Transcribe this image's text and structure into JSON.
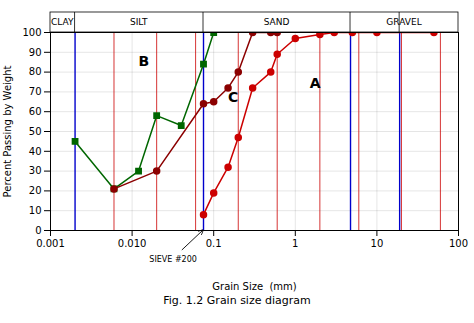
{
  "chart_data": {
    "type": "line",
    "title": "Fig. 1.2  Grain size diagram",
    "x_label": "Grain Size  (mm)",
    "y_label": "Percent Passing by Weight",
    "log": "x",
    "grid": true,
    "xlim": [
      0.001,
      100
    ],
    "ylim": [
      0,
      100
    ],
    "xticks": [
      0.001,
      {
        "value": 0.01,
        "label": "0.010"
      },
      0.1,
      1,
      10,
      100
    ],
    "yticks": [
      0,
      10,
      20,
      30,
      40,
      50,
      60,
      70,
      80,
      90,
      100
    ],
    "series": [
      {
        "name": "A",
        "color": "#cc0000",
        "marker": "circle",
        "x": [
          0.075,
          0.1,
          0.15,
          0.2,
          0.3,
          0.5,
          0.6,
          1.0,
          2.0,
          3.0,
          5.0,
          10.0,
          50.0
        ],
        "values": [
          8,
          19,
          32,
          47,
          72,
          80,
          89,
          97,
          99,
          100,
          100,
          100,
          100
        ]
      },
      {
        "name": "B",
        "color": "#006600",
        "marker": "square",
        "x": [
          0.002,
          0.006,
          0.012,
          0.02,
          0.04,
          0.075,
          0.1
        ],
        "values": [
          45,
          21,
          30,
          58,
          53,
          84,
          100
        ]
      },
      {
        "name": "C",
        "color": "#8B0000",
        "marker": "circle",
        "x": [
          0.006,
          0.02,
          0.075,
          0.1,
          0.15,
          0.2,
          0.3,
          0.5,
          0.6
        ],
        "values": [
          21,
          30,
          64,
          65,
          72,
          80,
          100,
          100,
          100
        ]
      }
    ],
    "annotations": [
      {
        "text": "A",
        "x": 1.5,
        "y": 72
      },
      {
        "text": "B",
        "x": 0.012,
        "y": 83
      },
      {
        "text": "C",
        "x": 0.15,
        "y": 65
      }
    ],
    "zone_boundaries": {
      "color": "#0000cc",
      "values": [
        0.002,
        0.075,
        4.75,
        19.0
      ]
    },
    "subdivisions": {
      "color": "#cc0000",
      "values": [
        0.006,
        0.02,
        0.06,
        0.2,
        0.6,
        2.0,
        6.0,
        20.0,
        60.0
      ]
    },
    "zones": [
      {
        "name": "CLAY",
        "range": [
          0.001,
          0.002
        ]
      },
      {
        "name": "SILT",
        "range": [
          0.002,
          0.075
        ]
      },
      {
        "name": "SAND",
        "range": [
          0.075,
          4.75
        ]
      },
      {
        "name": "GRAVEL",
        "range": [
          4.75,
          100
        ]
      }
    ],
    "sieve": {
      "text": "SIEVE #200",
      "x": 0.075
    }
  }
}
